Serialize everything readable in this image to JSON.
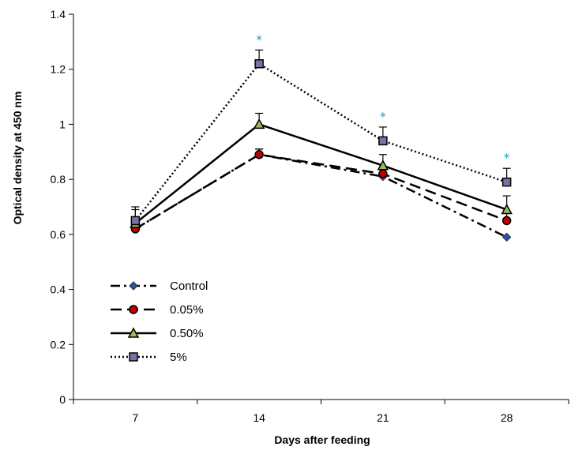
{
  "chart_data": {
    "type": "line",
    "xlabel": "Days after feeding",
    "ylabel": "Optical density at 450 nm",
    "categories": [
      "7",
      "14",
      "21",
      "28"
    ],
    "ylim": [
      0,
      1.4
    ],
    "yticks": [
      "0",
      "0.2",
      "0.4",
      "0.6",
      "0.8",
      "1",
      "1.2",
      "1.4"
    ],
    "grid": false,
    "legend_position": "bottom-left",
    "series": [
      {
        "name": "Control",
        "values": [
          0.62,
          0.89,
          0.81,
          0.59
        ],
        "errors": [
          0,
          0.02,
          0,
          0
        ],
        "marker": "diamond",
        "marker_color": "#2f5597",
        "line_style": "dash-dot"
      },
      {
        "name": "0.05%",
        "values": [
          0.62,
          0.89,
          0.82,
          0.65
        ],
        "errors": [
          0,
          0.02,
          0.02,
          0.03
        ],
        "marker": "circle",
        "marker_color": "#c00000",
        "line_style": "dash"
      },
      {
        "name": "0.50%",
        "values": [
          0.64,
          1.0,
          0.85,
          0.69
        ],
        "errors": [
          0.05,
          0.04,
          0.04,
          0.05
        ],
        "marker": "triangle",
        "marker_color": "#9bbb59",
        "line_style": "solid"
      },
      {
        "name": "5%",
        "values": [
          0.65,
          1.22,
          0.94,
          0.79
        ],
        "errors": [
          0.05,
          0.05,
          0.05,
          0.05
        ],
        "marker": "square",
        "marker_color": "#7f6fa8",
        "line_style": "dotted"
      }
    ],
    "annotations": [
      {
        "text": "*",
        "category": "14"
      },
      {
        "text": "*",
        "category": "21"
      },
      {
        "text": "*",
        "category": "28"
      }
    ]
  }
}
